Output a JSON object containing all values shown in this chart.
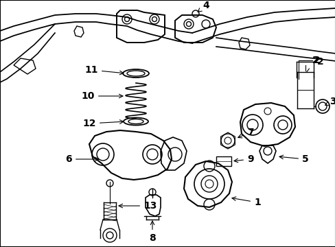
{
  "background_color": "#ffffff",
  "border_color": "#000000",
  "figsize": [
    4.89,
    3.6
  ],
  "dpi": 100,
  "label_fontsize": 10,
  "label_color": "#000000",
  "line_color": "#000000",
  "line_width": 1.0
}
